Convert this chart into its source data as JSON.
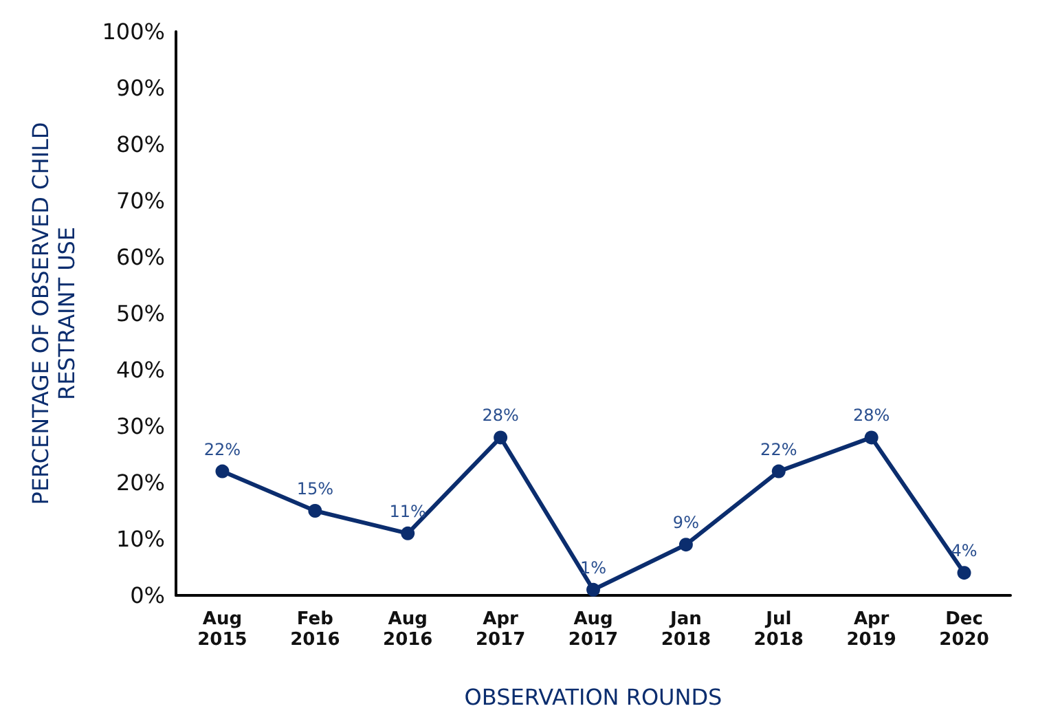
{
  "chart_data": {
    "type": "line",
    "xlabel": "OBSERVATION ROUNDS",
    "ylabel": "PERCENTAGE OF OBSERVED CHILD\nRESTRAINT USE",
    "categories": [
      "Aug\n2015",
      "Feb\n2016",
      "Aug\n2016",
      "Apr\n2017",
      "Aug\n2017",
      "Jan\n2018",
      "Jul\n2018",
      "Apr\n2019",
      "Dec\n2020"
    ],
    "series": [
      {
        "color": "#0b2d6e",
        "values": [
          22,
          15,
          11,
          28,
          1,
          9,
          22,
          28,
          4
        ],
        "value_labels": [
          "22%",
          "15%",
          "11%",
          "28%",
          "1%",
          "9%",
          "22%",
          "28%",
          "4%"
        ]
      }
    ],
    "ylim": [
      0,
      100
    ],
    "yticks": [
      {
        "value": 0,
        "label": "0%"
      },
      {
        "value": 10,
        "label": "10%"
      },
      {
        "value": 20,
        "label": "20%"
      },
      {
        "value": 30,
        "label": "30%"
      },
      {
        "value": 40,
        "label": "40%"
      },
      {
        "value": 50,
        "label": "50%"
      },
      {
        "value": 60,
        "label": "60%"
      },
      {
        "value": 70,
        "label": "70%"
      },
      {
        "value": 80,
        "label": "80%"
      },
      {
        "value": 90,
        "label": "90%"
      },
      {
        "value": 100,
        "label": "100%"
      }
    ],
    "marker": "circle",
    "line_style": "solid"
  }
}
